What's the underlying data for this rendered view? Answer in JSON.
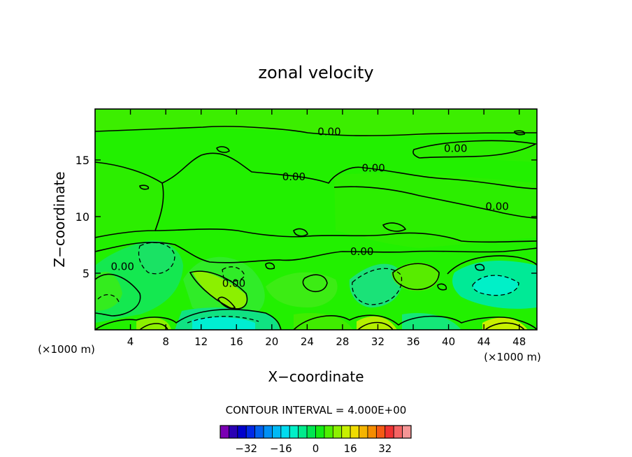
{
  "chart_data": {
    "type": "contour",
    "title": "zonal velocity",
    "xlabel": "X−coordinate",
    "ylabel": "Z−coordinate",
    "x_unit_left": "(×1000 m)",
    "x_unit_right": "(×1000 m)",
    "xlim": [
      0,
      50
    ],
    "ylim": [
      0,
      19.5
    ],
    "x_ticks": [
      4,
      8,
      12,
      16,
      20,
      24,
      28,
      32,
      36,
      40,
      44,
      48
    ],
    "y_ticks": [
      5,
      10,
      15
    ],
    "contour_labels": [
      {
        "text": "0.00",
        "x": 26.5,
        "z": 17.5
      },
      {
        "text": "0.00",
        "x": 40.8,
        "z": 16.0
      },
      {
        "text": "0.00",
        "x": 22.5,
        "z": 13.5
      },
      {
        "text": "0.00",
        "x": 31.5,
        "z": 14.3
      },
      {
        "text": "0.00",
        "x": 45.5,
        "z": 10.9
      },
      {
        "text": "0.00",
        "x": 30.2,
        "z": 6.9
      },
      {
        "text": "0.00",
        "x": 3.1,
        "z": 5.6
      },
      {
        "text": "0.00",
        "x": 15.7,
        "z": 4.1
      }
    ],
    "contour_interval_label": "CONTOUR INTERVAL = 4.000E+00",
    "colorbar": {
      "colors": [
        "#7b00b4",
        "#2a00b4",
        "#0000cc",
        "#0028e6",
        "#0060ee",
        "#0090f5",
        "#00b9f5",
        "#00dcf0",
        "#00f0c8",
        "#00eb8c",
        "#00e650",
        "#14eb14",
        "#50f000",
        "#8cf000",
        "#c8f000",
        "#f0dc00",
        "#f5b400",
        "#f58c00",
        "#f55a14",
        "#f03232",
        "#f56464",
        "#f59696"
      ],
      "tick_labels": [
        "−32",
        "−16",
        "0",
        "16",
        "32"
      ],
      "tick_values": [
        -32,
        -16,
        0,
        16,
        32
      ]
    }
  }
}
